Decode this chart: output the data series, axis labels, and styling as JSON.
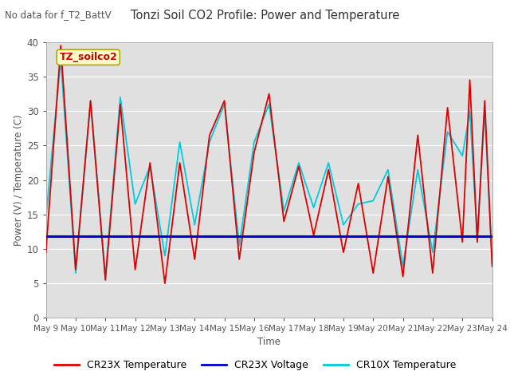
{
  "title": "Tonzi Soil CO2 Profile: Power and Temperature",
  "subtitle": "No data for f_T2_BattV",
  "ylabel": "Power (V) / Temperature (C)",
  "xlabel": "Time",
  "ylim": [
    0,
    40
  ],
  "bg_color": "#e0e0e0",
  "legend_label1": "CR23X Temperature",
  "legend_label2": "CR23X Voltage",
  "legend_label3": "CR10X Temperature",
  "legend_color1": "#dd0000",
  "legend_color2": "#0000cc",
  "legend_color3": "#00ccdd",
  "annotation": "TZ_soilco2",
  "xtick_labels": [
    "May 9",
    "May 10",
    "May 11",
    "May 12",
    "May 13",
    "May 14",
    "May 15",
    "May 16",
    "May 17",
    "May 18",
    "May 19",
    "May 20",
    "May 21",
    "May 22",
    "May 23",
    "May 24"
  ],
  "voltage_value": 11.9,
  "cr23x_temp": [
    9.5,
    39.5,
    7.0,
    31.5,
    5.5,
    31.0,
    7.0,
    22.5,
    5.0,
    22.5,
    8.5,
    26.5,
    31.5,
    8.5,
    24.0,
    32.5,
    14.0,
    22.0,
    12.0,
    21.5,
    9.5,
    19.5,
    6.5,
    20.5,
    6.0,
    26.5,
    6.5,
    30.5,
    11.0,
    34.5,
    11.0,
    31.5,
    7.5
  ],
  "cr10x_temp": [
    14.5,
    37.5,
    6.5,
    31.5,
    6.0,
    32.0,
    16.5,
    22.0,
    9.0,
    25.5,
    13.5,
    25.5,
    31.0,
    10.5,
    25.5,
    31.0,
    15.5,
    22.5,
    16.0,
    22.5,
    13.5,
    16.5,
    17.0,
    21.5,
    7.5,
    21.5,
    9.5,
    27.0,
    23.5,
    30.0,
    11.5,
    30.0,
    8.0
  ],
  "cr23x_x": [
    0.0,
    0.5,
    1.0,
    1.5,
    2.0,
    2.5,
    3.0,
    3.5,
    4.0,
    4.5,
    5.0,
    5.5,
    6.0,
    6.5,
    7.0,
    7.5,
    8.0,
    8.5,
    9.0,
    9.5,
    10.0,
    10.5,
    11.0,
    11.5,
    12.0,
    12.5,
    13.0,
    13.5,
    14.0,
    14.25,
    14.5,
    14.75,
    15.0
  ],
  "cr10x_x": [
    0.0,
    0.5,
    1.0,
    1.5,
    2.0,
    2.5,
    3.0,
    3.5,
    4.0,
    4.5,
    5.0,
    5.5,
    6.0,
    6.5,
    7.0,
    7.5,
    8.0,
    8.5,
    9.0,
    9.5,
    10.0,
    10.5,
    11.0,
    11.5,
    12.0,
    12.5,
    13.0,
    13.5,
    14.0,
    14.25,
    14.5,
    14.75,
    15.0
  ]
}
